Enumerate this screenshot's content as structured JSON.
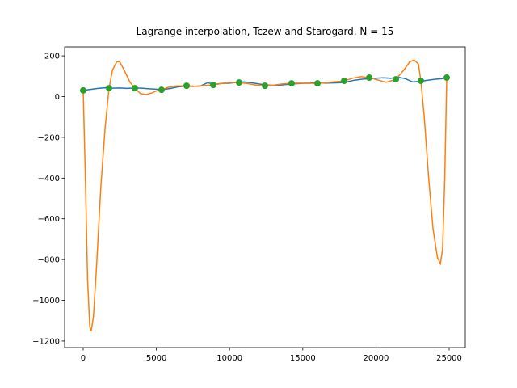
{
  "chart_data": {
    "type": "line",
    "title": "Lagrange interpolation, Tczew and Starogard, N = 15",
    "xlim": [
      -1269,
      26103
    ],
    "ylim": [
      -1232,
      244
    ],
    "xticks": [
      0,
      5000,
      10000,
      15000,
      20000,
      25000
    ],
    "yticks": [
      {
        "value": -1200,
        "label": "−1200"
      },
      {
        "value": -1000,
        "label": "−1000"
      },
      {
        "value": -800,
        "label": "−800"
      },
      {
        "value": -600,
        "label": "−600"
      },
      {
        "value": -400,
        "label": "−400"
      },
      {
        "value": -200,
        "label": "−200"
      },
      0,
      200
    ],
    "series": [
      {
        "kind": "line",
        "color": "#1f77b4",
        "x": [
          0,
          500,
          1000,
          1500,
          2000,
          2500,
          3000,
          3500,
          4000,
          4500,
          5000,
          5500,
          6000,
          6500,
          7000,
          7500,
          8000,
          8500,
          9000,
          9500,
          10000,
          10500,
          11000,
          11500,
          12000,
          12500,
          13000,
          13500,
          14000,
          14500,
          15000,
          15500,
          16000,
          16500,
          17000,
          17500,
          18000,
          18500,
          19000,
          19500,
          20000,
          20500,
          21000,
          21500,
          22000,
          22500,
          23000,
          23500,
          24000,
          24500,
          24834
        ],
        "values": [
          30,
          35,
          40,
          43,
          41,
          42,
          40,
          42,
          41,
          38,
          36,
          35,
          40,
          48,
          52,
          50,
          52,
          68,
          60,
          65,
          66,
          70,
          72,
          68,
          62,
          57,
          55,
          57,
          60,
          63,
          65,
          66,
          68,
          66,
          67,
          68,
          72,
          80,
          85,
          88,
          90,
          92,
          90,
          95,
          88,
          72,
          75,
          80,
          85,
          88,
          93
        ]
      },
      {
        "kind": "line",
        "color": "#ff7f0e",
        "x": [
          0,
          150,
          300,
          450,
          550,
          700,
          900,
          1200,
          1500,
          1766,
          2000,
          2300,
          2500,
          2800,
          3200,
          3532,
          3900,
          4300,
          4700,
          5000,
          5353,
          5800,
          6300,
          7064,
          7800,
          8400,
          8885,
          9500,
          10000,
          10651,
          11300,
          11900,
          12417,
          13000,
          13600,
          14238,
          14800,
          15400,
          16004,
          16600,
          17200,
          17826,
          18400,
          19000,
          19536,
          20100,
          20700,
          21358,
          21900,
          22300,
          22600,
          22900,
          23068,
          23300,
          23600,
          23900,
          24200,
          24400,
          24550,
          24700,
          24834
        ],
        "values": [
          30,
          -400,
          -900,
          -1130,
          -1150,
          -1080,
          -850,
          -450,
          -150,
          41,
          130,
          172,
          170,
          130,
          70,
          41,
          15,
          10,
          18,
          28,
          33,
          45,
          52,
          53,
          50,
          55,
          57,
          65,
          70,
          69,
          63,
          55,
          53,
          56,
          62,
          65,
          66,
          65,
          65,
          68,
          73,
          77,
          90,
          98,
          93,
          82,
          70,
          85,
          130,
          170,
          180,
          160,
          77,
          -100,
          -400,
          -650,
          -790,
          -820,
          -750,
          -400,
          93
        ]
      },
      {
        "kind": "scatter",
        "color": "#2ca02c",
        "x": [
          0,
          1766,
          3532,
          5353,
          7064,
          8885,
          10651,
          12417,
          14238,
          16004,
          17826,
          19536,
          21358,
          23068,
          24834
        ],
        "values": [
          30,
          41,
          41,
          33,
          53,
          57,
          69,
          53,
          65,
          65,
          77,
          93,
          85,
          77,
          93
        ]
      }
    ]
  }
}
